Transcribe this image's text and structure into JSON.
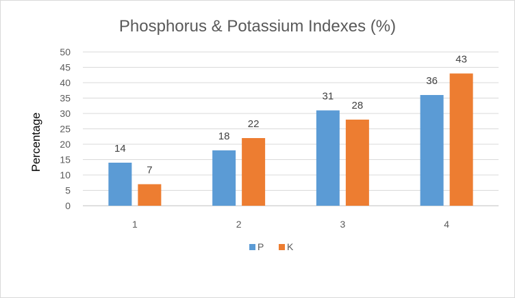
{
  "chart_data": {
    "type": "bar",
    "title": "Phosphorus & Potassium Indexes (%)",
    "xlabel": "",
    "ylabel": "Percentage",
    "categories": [
      "1",
      "2",
      "3",
      "4"
    ],
    "series": [
      {
        "name": "P",
        "values": [
          14,
          18,
          31,
          36
        ],
        "color": "#5b9bd5"
      },
      {
        "name": "K",
        "values": [
          7,
          22,
          28,
          43
        ],
        "color": "#ed7d31"
      }
    ],
    "ylim": [
      0,
      50
    ],
    "yticks": [
      0,
      5,
      10,
      15,
      20,
      25,
      30,
      35,
      40,
      45,
      50
    ],
    "grid": true,
    "data_labels": true,
    "legend_position": "bottom"
  }
}
